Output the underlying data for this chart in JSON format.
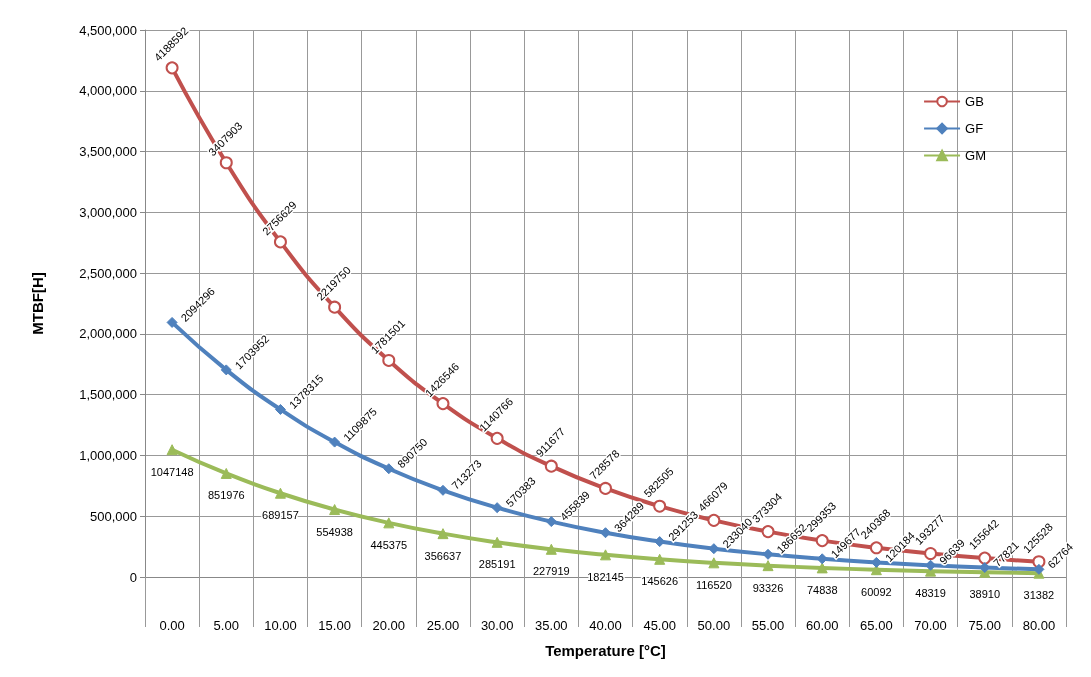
{
  "chart_data": {
    "type": "line",
    "xlabel": "Temperature [°C]",
    "ylabel": "MTBF[H]",
    "categories": [
      "0.00",
      "5.00",
      "10.00",
      "15.00",
      "20.00",
      "25.00",
      "30.00",
      "35.00",
      "40.00",
      "45.00",
      "50.00",
      "55.00",
      "60.00",
      "65.00",
      "70.00",
      "75.00",
      "80.00"
    ],
    "series": [
      {
        "name": "GB",
        "color": "#c0504d",
        "marker": "circle",
        "values": [
          4188592,
          3407903,
          2756629,
          2219750,
          1781501,
          1426546,
          1140766,
          911677,
          728578,
          582505,
          466079,
          373304,
          299353,
          240368,
          193277,
          155642,
          125528
        ]
      },
      {
        "name": "GF",
        "color": "#4f81bd",
        "marker": "diamond",
        "values": [
          2094296,
          1703952,
          1378315,
          1109875,
          890750,
          713273,
          570383,
          455839,
          364289,
          291253,
          233040,
          186652,
          149677,
          120184,
          96639,
          77821,
          62764
        ]
      },
      {
        "name": "GM",
        "color": "#9bbb59",
        "marker": "triangle",
        "values": [
          1047148,
          851976,
          689157,
          554938,
          445375,
          356637,
          285191,
          227919,
          182145,
          145626,
          116520,
          93326,
          74838,
          60092,
          48319,
          38910,
          31382
        ]
      }
    ],
    "ylim": [
      0,
      4500000
    ],
    "yticks": [
      0,
      {
        "value": 500000,
        "label": "500,000"
      },
      {
        "value": 1000000,
        "label": "1,000,000"
      },
      {
        "value": 1500000,
        "label": "1,500,000"
      },
      {
        "value": 2000000,
        "label": "2,000,000"
      },
      {
        "value": 2500000,
        "label": "2,500,000"
      },
      {
        "value": 3000000,
        "label": "3,000,000"
      },
      {
        "value": 3500000,
        "label": "3,500,000"
      },
      {
        "value": 4000000,
        "label": "4,000,000"
      },
      {
        "value": 4500000,
        "label": "4,500,000"
      }
    ],
    "grid": true,
    "legend": "top right",
    "data_labels": true
  }
}
